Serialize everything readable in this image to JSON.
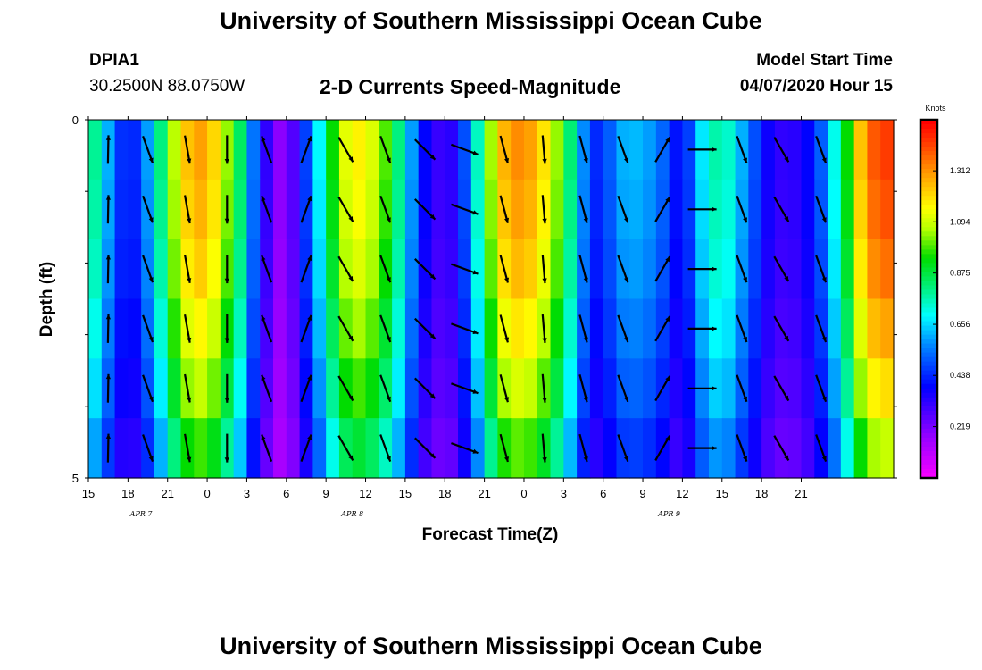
{
  "header": {
    "title": "University of Southern Mississippi Ocean Cube",
    "footer_title": "University of Southern Mississippi Ocean Cube",
    "station_id": "DPIA1",
    "station_coords": "30.2500N 88.0750W",
    "plot_title": "2-D Currents Speed-Magnitude",
    "start_label": "Model Start Time",
    "start_value": "04/07/2020 Hour 15"
  },
  "chart_data": {
    "type": "heatmap",
    "title": "2-D Currents Speed-Magnitude",
    "xlabel": "Forecast Time(Z)",
    "ylabel": "Depth (ft)",
    "x_ticks": [
      "15",
      "18",
      "21",
      "0",
      "3",
      "6",
      "9",
      "12",
      "15",
      "18",
      "21",
      "0",
      "3",
      "6",
      "9",
      "12",
      "15",
      "18",
      "21"
    ],
    "date_labels": [
      {
        "text": "APR 7",
        "hour_index": 4
      },
      {
        "text": "APR 8",
        "hour_index": 20
      },
      {
        "text": "APR 9",
        "hour_index": 44
      }
    ],
    "y_ticks": [
      "0",
      "5"
    ],
    "ylim": [
      0,
      5
    ],
    "colorbar": {
      "title": "Knots",
      "ticks": [
        "1.312",
        "1.094",
        "0.875",
        "0.656",
        "0.438",
        "0.219"
      ],
      "range": [
        0.0,
        1.53
      ]
    },
    "speed_knots_by_hour": [
      0.8,
      0.62,
      0.46,
      0.45,
      0.6,
      0.82,
      1.08,
      1.25,
      1.3,
      1.22,
      1.05,
      0.85,
      0.55,
      0.33,
      0.2,
      0.28,
      0.48,
      0.7,
      0.95,
      1.13,
      1.18,
      1.12,
      1.0,
      0.82,
      0.6,
      0.4,
      0.32,
      0.34,
      0.5,
      0.76,
      1.06,
      1.27,
      1.33,
      1.3,
      1.2,
      1.05,
      0.83,
      0.58,
      0.45,
      0.52,
      0.62,
      0.63,
      0.6,
      0.53,
      0.42,
      0.48,
      0.68,
      0.78,
      0.75,
      0.62,
      0.5,
      0.38,
      0.33,
      0.34,
      0.4,
      0.52,
      0.72,
      0.95,
      1.25,
      1.4,
      1.44
    ],
    "depth_factors": [
      1.0,
      0.98,
      0.95,
      0.9,
      0.84,
      0.76
    ],
    "arrow_hours": [
      1,
      4,
      7,
      10,
      13,
      16,
      19,
      22,
      25,
      28,
      31,
      34,
      37,
      40,
      43,
      46,
      49,
      52,
      55
    ],
    "arrow_direction_deg": [
      1,
      160,
      170,
      180,
      340,
      20,
      150,
      160,
      135,
      110,
      165,
      175,
      165,
      160,
      30,
      90,
      160,
      150,
      160
    ],
    "arrow_rows": 6
  }
}
